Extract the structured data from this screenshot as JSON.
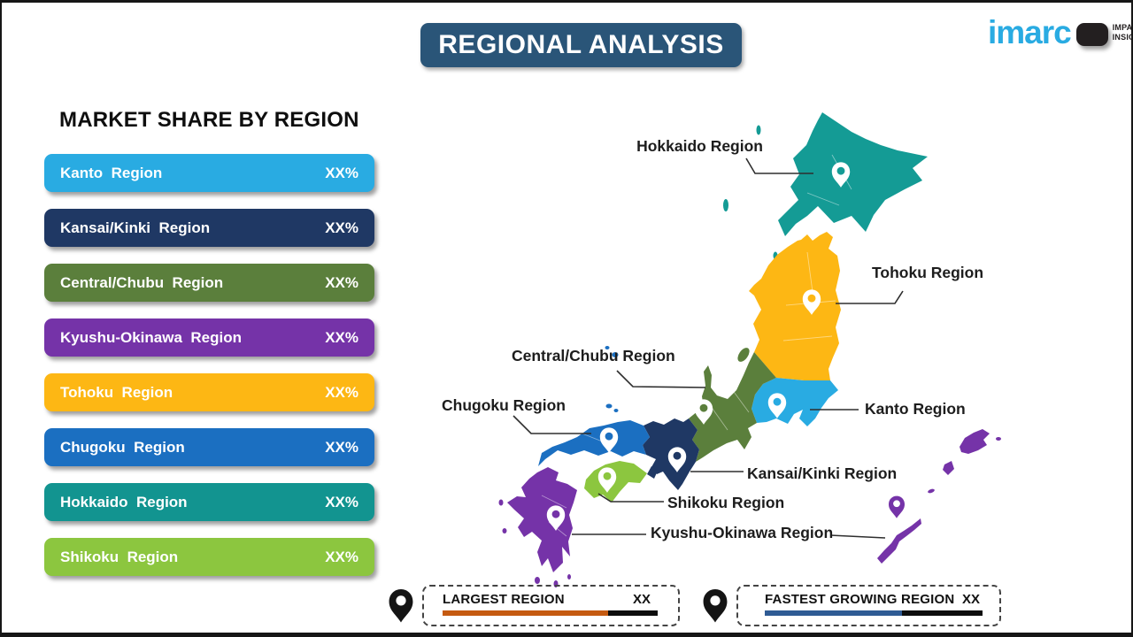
{
  "banner": {
    "title": "REGIONAL ANALYSIS",
    "bg_color": "#2A5578"
  },
  "logo": {
    "brand": "imarc",
    "brand_color": "#29ABE2",
    "tagline_line1": "IMPACTFUL",
    "tagline_line2": "INSIGHTS"
  },
  "left_panel": {
    "heading": "MARKET SHARE BY REGION",
    "bars": [
      {
        "label": "Kanto  Region",
        "value": "XX%",
        "color": "#29ABE2"
      },
      {
        "label": "Kansai/Kinki  Region",
        "value": "XX%",
        "color": "#1F3864"
      },
      {
        "label": "Central/Chubu  Region",
        "value": "XX%",
        "color": "#5B7F3C"
      },
      {
        "label": "Kyushu-Okinawa  Region",
        "value": "XX%",
        "color": "#7533A8"
      },
      {
        "label": "Tohoku  Region",
        "value": "XX%",
        "color": "#FDB714"
      },
      {
        "label": "Chugoku  Region",
        "value": "XX%",
        "color": "#1B6FC1"
      },
      {
        "label": "Hokkaido  Region",
        "value": "XX%",
        "color": "#129490"
      },
      {
        "label": "Shikoku  Region",
        "value": "XX%",
        "color": "#8CC63F"
      }
    ]
  },
  "map": {
    "regions": {
      "hokkaido": {
        "label": "Hokkaido Region",
        "color": "#149B95"
      },
      "tohoku": {
        "label": "Tohoku Region",
        "color": "#FDB714"
      },
      "kanto": {
        "label": "Kanto Region",
        "color": "#29ABE2"
      },
      "chubu": {
        "label": "Central/Chubu Region",
        "color": "#5B7F3C"
      },
      "kansai": {
        "label": "Kansai/Kinki Region",
        "color": "#1F3864"
      },
      "chugoku": {
        "label": "Chugoku Region",
        "color": "#1B6FC1"
      },
      "shikoku": {
        "label": "Shikoku Region",
        "color": "#8CC63F"
      },
      "kyushu_okinawa": {
        "label": "Kyushu-Okinawa Region",
        "color": "#7533A8"
      }
    },
    "pin_white": "#FFFFFF"
  },
  "legend": {
    "pin_color": "#141414",
    "largest": {
      "label": "LARGEST REGION",
      "value": "XX",
      "bar_color": "#C55A11",
      "bar_pct": 77
    },
    "fastest": {
      "label": "FASTEST GROWING REGION",
      "value": "XX",
      "bar_color": "#2F5B94",
      "bar_pct": 63
    }
  }
}
